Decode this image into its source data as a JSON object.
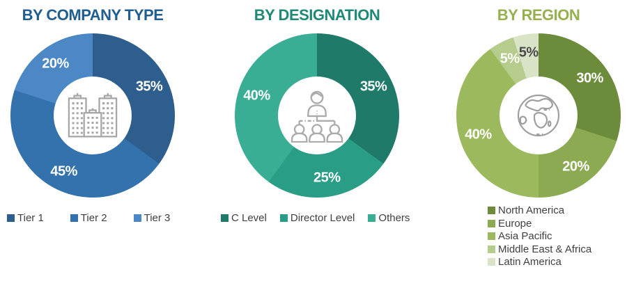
{
  "page": {
    "background_color": "#FFFFFF",
    "icon_color": "#A6A6A6"
  },
  "chart_data": [
    {
      "type": "pie",
      "subtype": "donut",
      "title": "BY COMPANY TYPE",
      "title_color": "#205D90",
      "labels": [
        "Tier 1",
        "Tier 2",
        "Tier 3"
      ],
      "values": [
        35,
        45,
        20
      ],
      "display_values": [
        "35%",
        "45%",
        "20%"
      ],
      "colors": [
        "#2D5E8E",
        "#3472AE",
        "#4B88C5"
      ],
      "value_label_colors": [
        "#FFFFFF",
        "#FFFFFF",
        "#FFFFFF"
      ],
      "center_icon": "buildings-icon",
      "legend_position": "bottom-horizontal",
      "start_angle_deg": 0,
      "direction": "clockwise"
    },
    {
      "type": "pie",
      "subtype": "donut",
      "title": "BY DESIGNATION",
      "title_color": "#1E8A76",
      "labels": [
        "C Level",
        "Director Level",
        "Others"
      ],
      "values": [
        35,
        25,
        40
      ],
      "display_values": [
        "35%",
        "25%",
        "40%"
      ],
      "colors": [
        "#1F7A6A",
        "#2A9D86",
        "#3AAE95"
      ],
      "value_label_colors": [
        "#FFFFFF",
        "#FFFFFF",
        "#FFFFFF"
      ],
      "center_icon": "org-chart-icon",
      "legend_position": "bottom-horizontal",
      "start_angle_deg": 0,
      "direction": "clockwise"
    },
    {
      "type": "pie",
      "subtype": "donut",
      "title": "BY REGION",
      "title_color": "#97B04F",
      "labels": [
        "North America",
        "Europe",
        "Asia Pacific",
        "Middle East & Africa",
        "Latin America"
      ],
      "values": [
        30,
        20,
        40,
        5,
        5
      ],
      "display_values": [
        "30%",
        "20%",
        "40%",
        "5%",
        "5%"
      ],
      "colors": [
        "#6D8C3B",
        "#8BAA52",
        "#9CBA5D",
        "#B5CC8D",
        "#D9E3C5"
      ],
      "value_label_colors": [
        "#FFFFFF",
        "#FFFFFF",
        "#FFFFFF",
        "#FFFFFF",
        "#4A4A4A"
      ],
      "center_icon": "globe-icon",
      "legend_position": "bottom-vertical",
      "start_angle_deg": 0,
      "direction": "clockwise"
    }
  ]
}
